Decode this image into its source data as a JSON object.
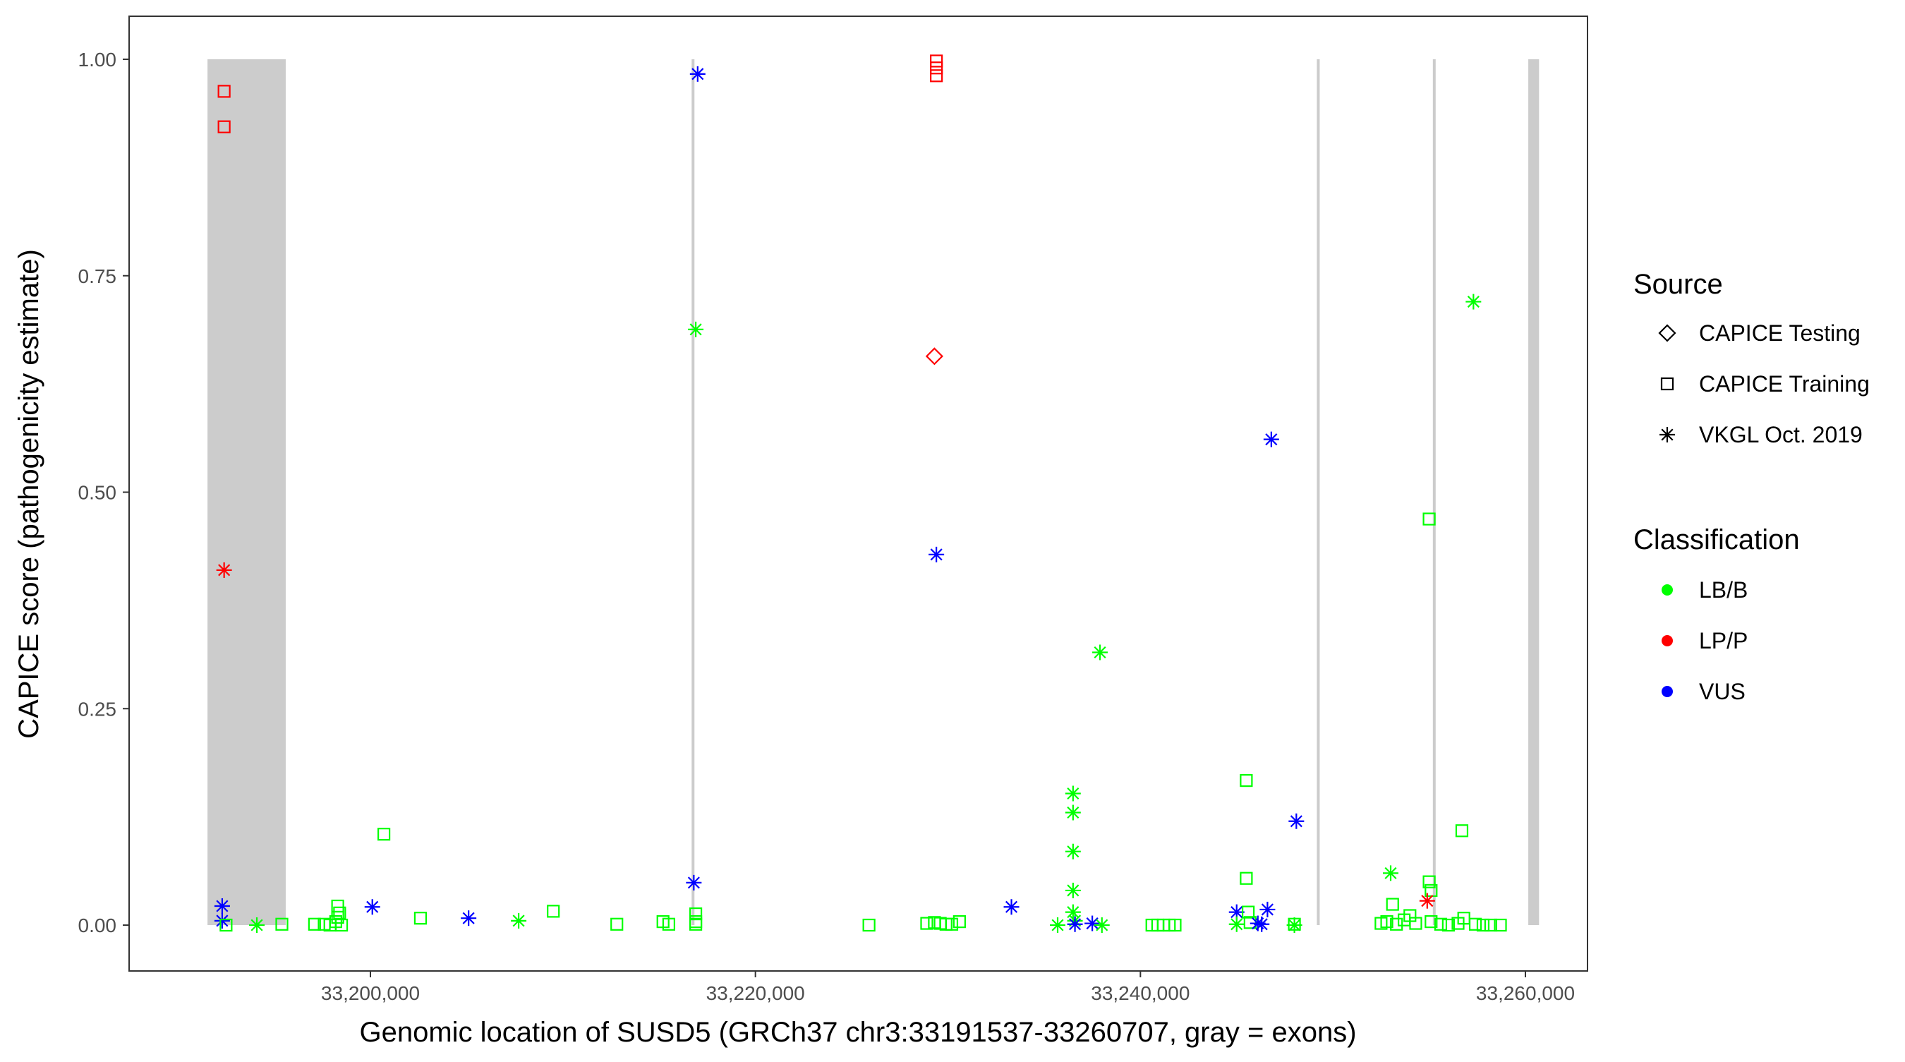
{
  "chart_data": {
    "type": "scatter",
    "xlabel": "Genomic location of SUSD5 (GRCh37 chr3:33191537-33260707, gray = exons)",
    "ylabel": "CAPICE score (pathogenicity estimate)",
    "xlim": [
      33185000,
      33262500
    ],
    "ylim": [
      -0.047,
      1.05
    ],
    "x_ticks": [
      33200000,
      33220000,
      33240000,
      33260000
    ],
    "x_tick_labels": [
      "33,200,000",
      "33,220,000",
      "33,240,000",
      "33,260,000"
    ],
    "y_ticks": [
      0,
      0.25,
      0.5,
      0.75,
      1.0
    ],
    "y_tick_labels": [
      "0.00",
      "0.25",
      "0.50",
      "0.75",
      "1.00"
    ],
    "grid": false,
    "legend_position": "right",
    "exons": [
      {
        "start": 33191537,
        "end": 33195600
      },
      {
        "start": 33216700,
        "end": 33216820
      },
      {
        "start": 33249200,
        "end": 33249280
      },
      {
        "start": 33255200,
        "end": 33255330
      },
      {
        "start": 33260150,
        "end": 33260707
      }
    ],
    "legend": {
      "source_title": "Source",
      "source_items": [
        {
          "label": "CAPICE Testing",
          "shape": "diamond"
        },
        {
          "label": "CAPICE Training",
          "shape": "square"
        },
        {
          "label": "VKGL Oct. 2019",
          "shape": "asterisk"
        }
      ],
      "class_title": "Classification",
      "class_items": [
        {
          "label": "LB/B",
          "color": "#00ff00"
        },
        {
          "label": "LP/P",
          "color": "#ff0000"
        },
        {
          "label": "VUS",
          "color": "#0000ff"
        }
      ]
    },
    "colors": {
      "LB/B": "#00ff00",
      "LP/P": "#ff0000",
      "VUS": "#0000ff"
    },
    "points": [
      {
        "x": 33192400,
        "y": 0.963,
        "source": "CAPICE Training",
        "class": "LP/P"
      },
      {
        "x": 33192400,
        "y": 0.922,
        "source": "CAPICE Training",
        "class": "LP/P"
      },
      {
        "x": 33192400,
        "y": 0.41,
        "source": "VKGL Oct. 2019",
        "class": "LP/P"
      },
      {
        "x": 33192300,
        "y": 0.022,
        "source": "VKGL Oct. 2019",
        "class": "VUS"
      },
      {
        "x": 33192300,
        "y": 0.005,
        "source": "VKGL Oct. 2019",
        "class": "VUS"
      },
      {
        "x": 33192500,
        "y": 0.0,
        "source": "CAPICE Training",
        "class": "LB/B"
      },
      {
        "x": 33194100,
        "y": 0.0,
        "source": "VKGL Oct. 2019",
        "class": "LB/B"
      },
      {
        "x": 33195400,
        "y": 0.001,
        "source": "CAPICE Training",
        "class": "LB/B"
      },
      {
        "x": 33197100,
        "y": 0.001,
        "source": "CAPICE Training",
        "class": "LB/B"
      },
      {
        "x": 33197600,
        "y": 0.001,
        "source": "CAPICE Training",
        "class": "LB/B"
      },
      {
        "x": 33197900,
        "y": 0.0,
        "source": "CAPICE Training",
        "class": "LB/B"
      },
      {
        "x": 33198200,
        "y": 0.004,
        "source": "CAPICE Training",
        "class": "LB/B"
      },
      {
        "x": 33198300,
        "y": 0.009,
        "source": "CAPICE Training",
        "class": "LB/B"
      },
      {
        "x": 33198400,
        "y": 0.014,
        "source": "CAPICE Training",
        "class": "LB/B"
      },
      {
        "x": 33198300,
        "y": 0.022,
        "source": "CAPICE Training",
        "class": "LB/B"
      },
      {
        "x": 33198500,
        "y": 0.0,
        "source": "CAPICE Training",
        "class": "LB/B"
      },
      {
        "x": 33200100,
        "y": 0.021,
        "source": "VKGL Oct. 2019",
        "class": "VUS"
      },
      {
        "x": 33200700,
        "y": 0.105,
        "source": "CAPICE Training",
        "class": "LB/B"
      },
      {
        "x": 33202600,
        "y": 0.008,
        "source": "CAPICE Training",
        "class": "LB/B"
      },
      {
        "x": 33205100,
        "y": 0.008,
        "source": "VKGL Oct. 2019",
        "class": "VUS"
      },
      {
        "x": 33207700,
        "y": 0.005,
        "source": "VKGL Oct. 2019",
        "class": "LB/B"
      },
      {
        "x": 33209500,
        "y": 0.016,
        "source": "CAPICE Training",
        "class": "LB/B"
      },
      {
        "x": 33212800,
        "y": 0.001,
        "source": "CAPICE Training",
        "class": "LB/B"
      },
      {
        "x": 33215200,
        "y": 0.004,
        "source": "CAPICE Training",
        "class": "LB/B"
      },
      {
        "x": 33215500,
        "y": 0.001,
        "source": "CAPICE Training",
        "class": "LB/B"
      },
      {
        "x": 33217000,
        "y": 0.983,
        "source": "VKGL Oct. 2019",
        "class": "VUS"
      },
      {
        "x": 33216900,
        "y": 0.688,
        "source": "VKGL Oct. 2019",
        "class": "LB/B"
      },
      {
        "x": 33216800,
        "y": 0.049,
        "source": "VKGL Oct. 2019",
        "class": "VUS"
      },
      {
        "x": 33216900,
        "y": 0.013,
        "source": "CAPICE Training",
        "class": "LB/B"
      },
      {
        "x": 33216900,
        "y": 0.004,
        "source": "CAPICE Training",
        "class": "LB/B"
      },
      {
        "x": 33216900,
        "y": 0.001,
        "source": "CAPICE Training",
        "class": "LB/B"
      },
      {
        "x": 33225900,
        "y": 0.0,
        "source": "CAPICE Training",
        "class": "LB/B"
      },
      {
        "x": 33229400,
        "y": 0.998,
        "source": "CAPICE Training",
        "class": "LP/P"
      },
      {
        "x": 33229400,
        "y": 0.99,
        "source": "CAPICE Training",
        "class": "LP/P"
      },
      {
        "x": 33229400,
        "y": 0.981,
        "source": "CAPICE Training",
        "class": "LP/P"
      },
      {
        "x": 33229300,
        "y": 0.657,
        "source": "CAPICE Testing",
        "class": "LP/P"
      },
      {
        "x": 33229400,
        "y": 0.428,
        "source": "VKGL Oct. 2019",
        "class": "VUS"
      },
      {
        "x": 33228900,
        "y": 0.002,
        "source": "CAPICE Training",
        "class": "LB/B"
      },
      {
        "x": 33229300,
        "y": 0.003,
        "source": "CAPICE Training",
        "class": "LB/B"
      },
      {
        "x": 33229600,
        "y": 0.002,
        "source": "CAPICE Training",
        "class": "LB/B"
      },
      {
        "x": 33229900,
        "y": 0.001,
        "source": "CAPICE Training",
        "class": "LB/B"
      },
      {
        "x": 33230200,
        "y": 0.001,
        "source": "CAPICE Training",
        "class": "LB/B"
      },
      {
        "x": 33230600,
        "y": 0.004,
        "source": "CAPICE Training",
        "class": "LB/B"
      },
      {
        "x": 33233300,
        "y": 0.021,
        "source": "VKGL Oct. 2019",
        "class": "VUS"
      },
      {
        "x": 33235700,
        "y": 0.0,
        "source": "VKGL Oct. 2019",
        "class": "LB/B"
      },
      {
        "x": 33236500,
        "y": 0.152,
        "source": "VKGL Oct. 2019",
        "class": "LB/B"
      },
      {
        "x": 33236500,
        "y": 0.13,
        "source": "VKGL Oct. 2019",
        "class": "LB/B"
      },
      {
        "x": 33236500,
        "y": 0.085,
        "source": "VKGL Oct. 2019",
        "class": "LB/B"
      },
      {
        "x": 33236500,
        "y": 0.04,
        "source": "VKGL Oct. 2019",
        "class": "LB/B"
      },
      {
        "x": 33236500,
        "y": 0.015,
        "source": "VKGL Oct. 2019",
        "class": "LB/B"
      },
      {
        "x": 33236600,
        "y": 0.005,
        "source": "VKGL Oct. 2019",
        "class": "LB/B"
      },
      {
        "x": 33236600,
        "y": 0.001,
        "source": "VKGL Oct. 2019",
        "class": "VUS"
      },
      {
        "x": 33237500,
        "y": 0.002,
        "source": "VKGL Oct. 2019",
        "class": "VUS"
      },
      {
        "x": 33237900,
        "y": 0.315,
        "source": "VKGL Oct. 2019",
        "class": "LB/B"
      },
      {
        "x": 33238000,
        "y": 0.0,
        "source": "VKGL Oct. 2019",
        "class": "LB/B"
      },
      {
        "x": 33240600,
        "y": 0.0,
        "source": "CAPICE Training",
        "class": "LB/B"
      },
      {
        "x": 33240900,
        "y": 0.0,
        "source": "CAPICE Training",
        "class": "LB/B"
      },
      {
        "x": 33241200,
        "y": 0.0,
        "source": "CAPICE Training",
        "class": "LB/B"
      },
      {
        "x": 33241500,
        "y": 0.0,
        "source": "CAPICE Training",
        "class": "LB/B"
      },
      {
        "x": 33241800,
        "y": 0.0,
        "source": "CAPICE Training",
        "class": "LB/B"
      },
      {
        "x": 33245500,
        "y": 0.167,
        "source": "CAPICE Training",
        "class": "LB/B"
      },
      {
        "x": 33245500,
        "y": 0.054,
        "source": "CAPICE Training",
        "class": "LB/B"
      },
      {
        "x": 33245000,
        "y": 0.015,
        "source": "VKGL Oct. 2019",
        "class": "VUS"
      },
      {
        "x": 33245600,
        "y": 0.015,
        "source": "CAPICE Training",
        "class": "LB/B"
      },
      {
        "x": 33245000,
        "y": 0.001,
        "source": "VKGL Oct. 2019",
        "class": "LB/B"
      },
      {
        "x": 33245700,
        "y": 0.003,
        "source": "CAPICE Training",
        "class": "LB/B"
      },
      {
        "x": 33246100,
        "y": 0.002,
        "source": "VKGL Oct. 2019",
        "class": "VUS"
      },
      {
        "x": 33246300,
        "y": 0.001,
        "source": "VKGL Oct. 2019",
        "class": "VUS"
      },
      {
        "x": 33246800,
        "y": 0.561,
        "source": "VKGL Oct. 2019",
        "class": "VUS"
      },
      {
        "x": 33246600,
        "y": 0.018,
        "source": "VKGL Oct. 2019",
        "class": "VUS"
      },
      {
        "x": 33248100,
        "y": 0.12,
        "source": "VKGL Oct. 2019",
        "class": "VUS"
      },
      {
        "x": 33248000,
        "y": 0.001,
        "source": "CAPICE Training",
        "class": "LB/B"
      },
      {
        "x": 33248000,
        "y": 0.0,
        "source": "VKGL Oct. 2019",
        "class": "LB/B"
      },
      {
        "x": 33252500,
        "y": 0.002,
        "source": "CAPICE Training",
        "class": "LB/B"
      },
      {
        "x": 33252800,
        "y": 0.004,
        "source": "CAPICE Training",
        "class": "LB/B"
      },
      {
        "x": 33253000,
        "y": 0.06,
        "source": "VKGL Oct. 2019",
        "class": "LB/B"
      },
      {
        "x": 33253100,
        "y": 0.024,
        "source": "CAPICE Training",
        "class": "LB/B"
      },
      {
        "x": 33253300,
        "y": 0.001,
        "source": "CAPICE Training",
        "class": "LB/B"
      },
      {
        "x": 33253700,
        "y": 0.006,
        "source": "CAPICE Training",
        "class": "LB/B"
      },
      {
        "x": 33254000,
        "y": 0.011,
        "source": "CAPICE Training",
        "class": "LB/B"
      },
      {
        "x": 33254300,
        "y": 0.002,
        "source": "CAPICE Training",
        "class": "LB/B"
      },
      {
        "x": 33255000,
        "y": 0.469,
        "source": "CAPICE Training",
        "class": "LB/B"
      },
      {
        "x": 33255000,
        "y": 0.05,
        "source": "CAPICE Training",
        "class": "LB/B"
      },
      {
        "x": 33255100,
        "y": 0.04,
        "source": "CAPICE Training",
        "class": "LB/B"
      },
      {
        "x": 33254900,
        "y": 0.028,
        "source": "VKGL Oct. 2019",
        "class": "LP/P"
      },
      {
        "x": 33255100,
        "y": 0.004,
        "source": "CAPICE Training",
        "class": "LB/B"
      },
      {
        "x": 33255600,
        "y": 0.001,
        "source": "CAPICE Training",
        "class": "LB/B"
      },
      {
        "x": 33256000,
        "y": 0.0,
        "source": "CAPICE Training",
        "class": "LB/B"
      },
      {
        "x": 33256500,
        "y": 0.002,
        "source": "CAPICE Training",
        "class": "LB/B"
      },
      {
        "x": 33256700,
        "y": 0.109,
        "source": "CAPICE Training",
        "class": "LB/B"
      },
      {
        "x": 33256800,
        "y": 0.008,
        "source": "CAPICE Training",
        "class": "LB/B"
      },
      {
        "x": 33257300,
        "y": 0.72,
        "source": "VKGL Oct. 2019",
        "class": "LB/B"
      },
      {
        "x": 33257400,
        "y": 0.001,
        "source": "CAPICE Training",
        "class": "LB/B"
      },
      {
        "x": 33257800,
        "y": 0.0,
        "source": "CAPICE Training",
        "class": "LB/B"
      },
      {
        "x": 33258200,
        "y": 0.0,
        "source": "CAPICE Training",
        "class": "LB/B"
      },
      {
        "x": 33258700,
        "y": 0.0,
        "source": "CAPICE Training",
        "class": "LB/B"
      }
    ]
  }
}
